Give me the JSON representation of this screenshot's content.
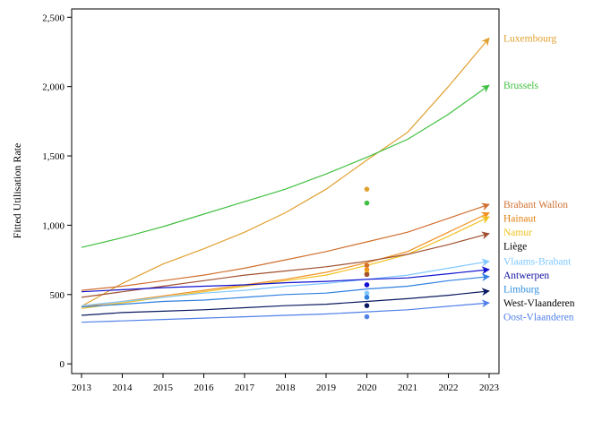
{
  "chart_data": {
    "type": "line",
    "title": "",
    "xlabel": "",
    "ylabel": "Fitted Utilisation Rate",
    "x": [
      2013,
      2014,
      2015,
      2016,
      2017,
      2018,
      2019,
      2020,
      2021,
      2022,
      2023
    ],
    "x_ticks": [
      "2013",
      "2014",
      "2015",
      "2016",
      "2017",
      "2018",
      "2019",
      "2020",
      "2021",
      "2022",
      "2023"
    ],
    "y_ticks": [
      "0",
      "500",
      "1,000",
      "1,500",
      "2,000",
      "2,500"
    ],
    "ylim": [
      -70,
      2560
    ],
    "grid": false,
    "legend": "direct labels at right end of lines",
    "arrows_at_end": true,
    "series": [
      {
        "name": "Luxembourg",
        "color": "#e0a030",
        "values": [
          415,
          580,
          720,
          830,
          950,
          1090,
          1260,
          1470,
          1670,
          2000,
          2350
        ],
        "point_2020": 1260
      },
      {
        "name": "Brussels",
        "color": "#40c040",
        "values": [
          840,
          910,
          990,
          1080,
          1170,
          1260,
          1370,
          1490,
          1620,
          1800,
          2010
        ],
        "point_2020": 1160
      },
      {
        "name": "Brabant Wallon",
        "color": "#d07030",
        "values": [
          530,
          560,
          600,
          640,
          690,
          750,
          810,
          880,
          950,
          1050,
          1150
        ],
        "point_2020": 710
      },
      {
        "name": "Hainaut",
        "color": "#f09020",
        "values": [
          410,
          450,
          490,
          530,
          570,
          610,
          660,
          730,
          810,
          950,
          1090
        ],
        "point_2020": 680
      },
      {
        "name": "Namur",
        "color": "#f0c020",
        "values": [
          400,
          440,
          480,
          520,
          560,
          600,
          640,
          710,
          790,
          920,
          1060
        ],
        "point_2020": 655
      },
      {
        "name": "Liège",
        "color": "#a05030",
        "values": [
          480,
          520,
          560,
          600,
          640,
          670,
          700,
          740,
          790,
          860,
          940
        ],
        "point_2020": 645
      },
      {
        "name": "Vlaams-Brabant",
        "color": "#80c8ff",
        "values": [
          420,
          450,
          480,
          510,
          530,
          560,
          580,
          610,
          640,
          690,
          740
        ],
        "point_2020": 510
      },
      {
        "name": "Antwerpen",
        "color": "#1010d0",
        "values": [
          520,
          535,
          550,
          560,
          570,
          585,
          595,
          610,
          620,
          650,
          680
        ],
        "point_2020": 570
      },
      {
        "name": "Limburg",
        "color": "#3080e0",
        "values": [
          410,
          430,
          450,
          460,
          480,
          500,
          510,
          540,
          560,
          600,
          630
        ],
        "point_2020": 480
      },
      {
        "name": "West-Vlaanderen",
        "color": "#0a1a60",
        "values": [
          350,
          370,
          380,
          390,
          405,
          420,
          430,
          450,
          470,
          495,
          525
        ],
        "point_2020": 420
      },
      {
        "name": "Oost-Vlaanderen",
        "color": "#5080e8",
        "values": [
          300,
          310,
          320,
          330,
          340,
          350,
          360,
          375,
          390,
          415,
          440
        ],
        "point_2020": 340
      }
    ],
    "label_colors": {
      "Luxembourg": "#e0a030",
      "Brussels": "#40c040",
      "Brabant Wallon": "#d07030",
      "Hainaut": "#e08010",
      "Namur": "#f0c020",
      "Liège": "#000000",
      "Vlaams-Brabant": "#80c8ff",
      "Antwerpen": "#1010a0",
      "Limburg": "#3090e0",
      "West-Vlaanderen": "#000000",
      "Oost-Vlaanderen": "#5080e8"
    }
  }
}
